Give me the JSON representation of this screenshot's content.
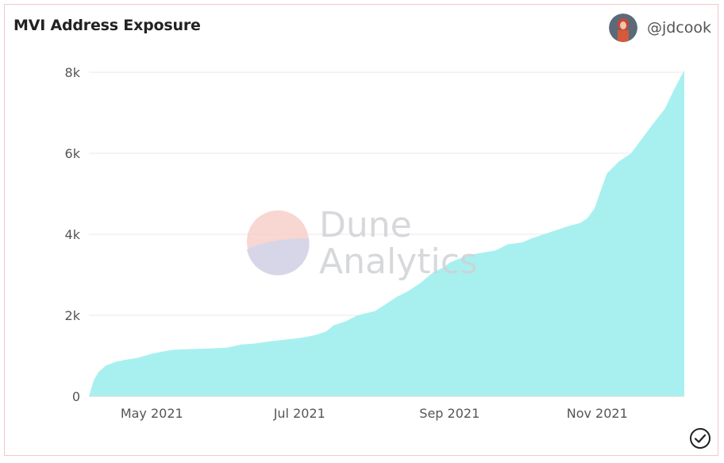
{
  "header": {
    "title": "MVI Address Exposure",
    "author_handle": "@jdcook",
    "avatar_icon": "user-avatar-icon"
  },
  "watermark": {
    "line1": "Dune",
    "line2": "Analytics"
  },
  "status": {
    "icon": "check-circle-icon"
  },
  "colors": {
    "area": "#a8f0f0",
    "grid": "#e8e8e8",
    "text": "#555555"
  },
  "chart_data": {
    "type": "area",
    "title": "MVI Address Exposure",
    "xlabel": "",
    "ylabel": "",
    "ylim": [
      0,
      8000
    ],
    "yticks": [
      0,
      2000,
      4000,
      6000,
      8000
    ],
    "ytick_labels": [
      "0",
      "2k",
      "4k",
      "6k",
      "8k"
    ],
    "xlim": [
      "2021-04-05",
      "2021-12-07"
    ],
    "xticks": [
      "2021-05-01",
      "2021-07-01",
      "2021-09-01",
      "2021-11-01"
    ],
    "xtick_labels": [
      "May 2021",
      "Jul 2021",
      "Sep 2021",
      "Nov 2021"
    ],
    "grid": true,
    "series": [
      {
        "x": [
          "2021-04-05",
          "2021-04-07",
          "2021-04-09",
          "2021-04-12",
          "2021-04-16",
          "2021-04-20",
          "2021-04-25",
          "2021-05-01",
          "2021-05-05",
          "2021-05-10",
          "2021-05-15",
          "2021-05-20",
          "2021-05-25",
          "2021-06-01",
          "2021-06-07",
          "2021-06-12",
          "2021-06-18",
          "2021-06-25",
          "2021-07-01",
          "2021-07-05",
          "2021-07-08",
          "2021-07-12",
          "2021-07-15",
          "2021-07-20",
          "2021-07-25",
          "2021-08-01",
          "2021-08-05",
          "2021-08-10",
          "2021-08-15",
          "2021-08-20",
          "2021-08-25",
          "2021-08-30",
          "2021-09-01",
          "2021-09-05",
          "2021-09-10",
          "2021-09-15",
          "2021-09-20",
          "2021-09-25",
          "2021-10-01",
          "2021-10-05",
          "2021-10-10",
          "2021-10-15",
          "2021-10-20",
          "2021-10-25",
          "2021-10-28",
          "2021-10-31",
          "2021-11-02",
          "2021-11-05",
          "2021-11-10",
          "2021-11-15",
          "2021-11-20",
          "2021-11-25",
          "2021-11-29",
          "2021-12-03",
          "2021-12-07"
        ],
        "values": [
          0,
          400,
          600,
          760,
          850,
          900,
          950,
          1050,
          1100,
          1150,
          1160,
          1170,
          1180,
          1200,
          1280,
          1300,
          1350,
          1400,
          1440,
          1480,
          1520,
          1600,
          1750,
          1850,
          2000,
          2100,
          2250,
          2450,
          2600,
          2800,
          3050,
          3200,
          3300,
          3400,
          3500,
          3550,
          3600,
          3750,
          3800,
          3900,
          4000,
          4100,
          4200,
          4280,
          4400,
          4650,
          5000,
          5500,
          5800,
          6000,
          6400,
          6800,
          7100,
          7600,
          8050
        ]
      }
    ]
  }
}
